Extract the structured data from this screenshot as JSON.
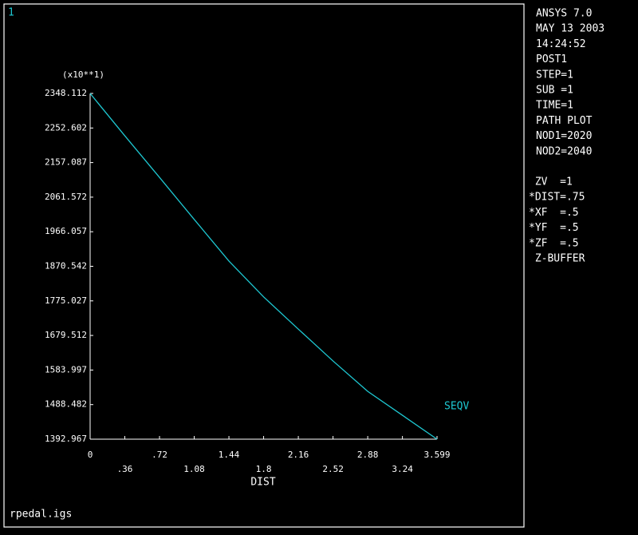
{
  "chart_data": {
    "type": "line",
    "window_number": "1",
    "y_multiplier": "(x10**1)",
    "xlabel": "DIST",
    "filename": "rpedal.igs",
    "x": [
      0,
      0.36,
      0.72,
      1.08,
      1.44,
      1.8,
      2.16,
      2.52,
      2.88,
      3.24,
      3.599
    ],
    "series": [
      {
        "name": "SEQV",
        "color": "#1ec8d2",
        "values": [
          2348.112,
          2231,
          2116,
          2000,
          1885,
          1786,
          1697,
          1609,
          1525,
          1459,
          1392.967
        ]
      }
    ],
    "xlim": [
      0,
      3.599
    ],
    "xticks": [
      0,
      {
        "value": 0.36,
        "label": ".36"
      },
      {
        "value": 0.72,
        "label": ".72"
      },
      1.08,
      1.44,
      1.8,
      2.16,
      2.52,
      2.88,
      3.24,
      3.599
    ],
    "ylim": [
      1392.967,
      2348.112
    ],
    "yticks": [
      2348.112,
      2252.602,
      2157.087,
      2061.572,
      1966.057,
      1870.542,
      1775.027,
      1679.512,
      1583.997,
      1488.482,
      1392.967
    ],
    "status_lines": [
      "ANSYS 7.0",
      "MAY 13 2003",
      "14:24:52",
      "POST1",
      "STEP=1",
      "SUB =1",
      "TIME=1",
      "PATH PLOT",
      "NOD1=2020",
      "NOD2=2040"
    ],
    "view_lines": [
      " ZV  =1",
      "*DIST=.75",
      "*XF  =.5",
      "*YF  =.5",
      "*ZF  =.5",
      " Z-BUFFER"
    ]
  }
}
